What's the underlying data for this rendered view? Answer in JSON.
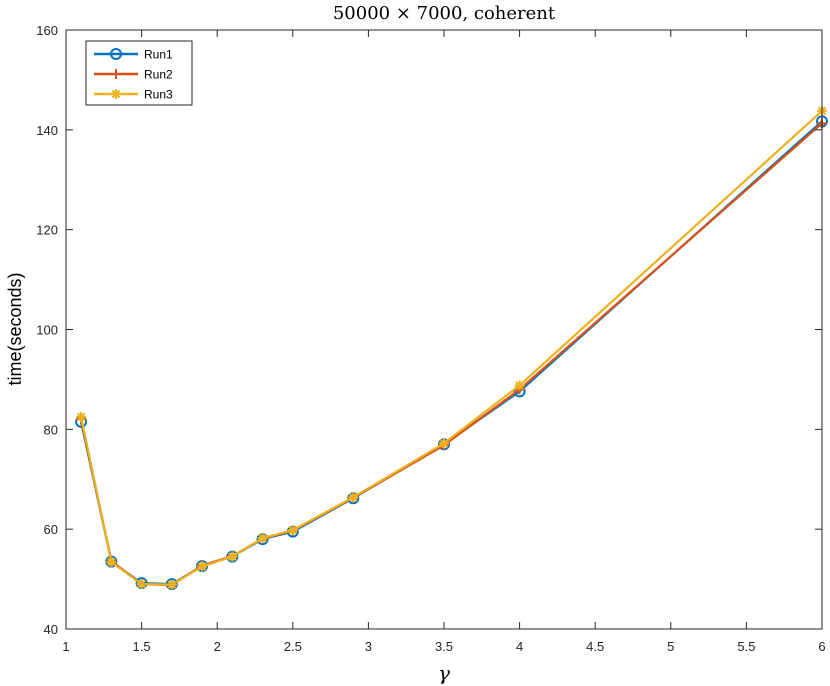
{
  "chart_data": {
    "type": "line",
    "title": "50000 × 7000, coherent",
    "xlabel": "γ",
    "ylabel": "time(seconds)",
    "xlim": [
      1,
      6
    ],
    "ylim": [
      40,
      160
    ],
    "xticks": [
      "1",
      "1.5",
      "2",
      "2.5",
      "3",
      "3.5",
      "4",
      "4.5",
      "5",
      "5.5",
      "6"
    ],
    "yticks": [
      "40",
      "60",
      "80",
      "100",
      "120",
      "140",
      "160"
    ],
    "grid": false,
    "legend_position": "top-left",
    "x": [
      1.1,
      1.3,
      1.5,
      1.7,
      1.9,
      2.1,
      2.3,
      2.5,
      2.9,
      3.5,
      4.0,
      6.0
    ],
    "series": [
      {
        "name": "Run1",
        "color": "#0072BD",
        "marker": "circle",
        "values": [
          81.5,
          53.5,
          49.2,
          49.0,
          52.6,
          54.5,
          58.0,
          59.5,
          66.2,
          77.0,
          87.6,
          141.7
        ]
      },
      {
        "name": "Run2",
        "color": "#D95319",
        "marker": "plus",
        "values": [
          82.0,
          53.6,
          49.0,
          48.8,
          52.7,
          54.6,
          58.1,
          59.7,
          66.3,
          76.8,
          88.0,
          141.3
        ]
      },
      {
        "name": "Run3",
        "color": "#EDB120",
        "marker": "asterisk",
        "values": [
          82.5,
          53.4,
          49.0,
          48.9,
          52.5,
          54.5,
          58.2,
          59.8,
          66.4,
          77.2,
          88.8,
          143.8
        ]
      }
    ]
  }
}
